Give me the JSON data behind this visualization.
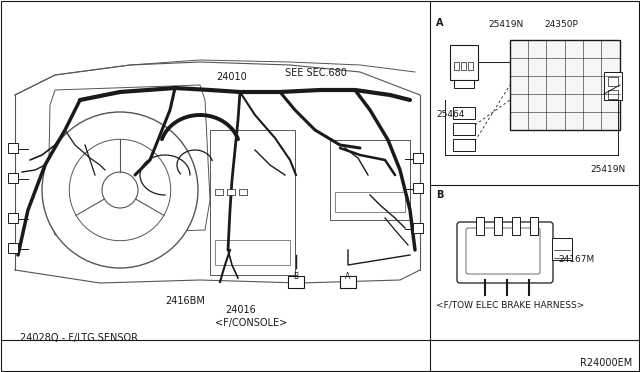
{
  "bg_color": "#ffffff",
  "line_color": "#1a1a1a",
  "thin_color": "#555555",
  "fig_width": 6.4,
  "fig_height": 3.72,
  "dpi": 100,
  "labels": {
    "sec680": "SEE SEC.680",
    "part24010": "24010",
    "part24028Q": "24028Q - F/LTG SENSOR",
    "part2416BM": "2416BM",
    "part24016": "24016",
    "part24016sub": "<F/CONSOLE>",
    "labelA": "A",
    "labelB": "B",
    "ref_r24000em": "R24000EM",
    "ref_A": "A",
    "ref_B": "B",
    "part25419N_1": "25419N",
    "part24350P": "24350P",
    "part25464": "25464",
    "part25419N_2": "25419N",
    "part24167M": "24167M",
    "harness_label": "<F/TOW ELEC BRAKE HARNESS>"
  }
}
